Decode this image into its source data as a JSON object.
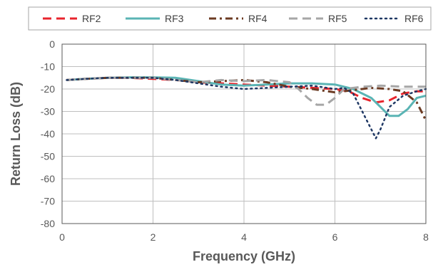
{
  "chart_data": {
    "type": "line",
    "title": "",
    "xlabel": "Frequency (GHz)",
    "ylabel": "Return Loss (dB)",
    "xlim": [
      0,
      8
    ],
    "ylim": [
      -80,
      0
    ],
    "xticks": [
      0,
      2,
      4,
      6,
      8
    ],
    "yticks": [
      0,
      -10,
      -20,
      -30,
      -40,
      -50,
      -60,
      -70,
      -80
    ],
    "grid": true,
    "legend_position": "top",
    "series": [
      {
        "name": "RF2",
        "color": "#e8242c",
        "style": "dash",
        "x": [
          0.1,
          0.5,
          1.0,
          1.5,
          2.0,
          2.5,
          3.0,
          3.5,
          4.0,
          4.5,
          5.0,
          5.5,
          6.0,
          6.3,
          6.6,
          6.9,
          7.2,
          7.5,
          7.8,
          8.0
        ],
        "y": [
          -16,
          -15.5,
          -15,
          -15,
          -15.5,
          -16,
          -17,
          -17.5,
          -18,
          -18.5,
          -19,
          -19.5,
          -20,
          -21,
          -24,
          -26,
          -25,
          -22,
          -21,
          -21
        ]
      },
      {
        "name": "RF3",
        "color": "#5ab4b4",
        "style": "solid",
        "x": [
          0.1,
          0.5,
          1.0,
          1.5,
          2.0,
          2.5,
          3.0,
          3.5,
          4.0,
          4.5,
          5.0,
          5.5,
          6.0,
          6.4,
          6.8,
          7.0,
          7.2,
          7.4,
          7.6,
          7.8,
          8.0
        ],
        "y": [
          -16,
          -15.5,
          -15,
          -14.8,
          -14.8,
          -15,
          -16.5,
          -18,
          -18.5,
          -18,
          -17.5,
          -17.5,
          -18,
          -20,
          -24,
          -28,
          -32,
          -32,
          -29,
          -24,
          -23
        ]
      },
      {
        "name": "RF4",
        "color": "#6b3a22",
        "style": "dashdot",
        "x": [
          0.1,
          0.5,
          1.0,
          1.5,
          2.0,
          2.5,
          3.0,
          3.5,
          4.0,
          4.5,
          5.0,
          5.5,
          6.0,
          6.4,
          6.8,
          7.2,
          7.5,
          7.8,
          8.0
        ],
        "y": [
          -16,
          -15.5,
          -15,
          -15,
          -15,
          -16,
          -17,
          -16.5,
          -16,
          -17,
          -19,
          -20,
          -21.5,
          -20.5,
          -19.5,
          -20,
          -21,
          -26,
          -34
        ]
      },
      {
        "name": "RF5",
        "color": "#a6a6a6",
        "style": "dash",
        "x": [
          0.1,
          0.5,
          1.0,
          1.5,
          2.0,
          2.5,
          3.0,
          3.5,
          4.0,
          4.5,
          5.0,
          5.2,
          5.4,
          5.6,
          5.8,
          6.0,
          6.2,
          6.6,
          7.0,
          7.5,
          8.0
        ],
        "y": [
          -16,
          -15.5,
          -15,
          -15,
          -15,
          -16,
          -17,
          -16,
          -16.5,
          -16,
          -17,
          -20,
          -24,
          -27,
          -27,
          -24,
          -20,
          -19,
          -18.5,
          -19,
          -19
        ]
      },
      {
        "name": "RF6",
        "color": "#1f3864",
        "style": "dot",
        "x": [
          0.1,
          0.5,
          1.0,
          1.5,
          2.0,
          2.5,
          3.0,
          3.5,
          4.0,
          4.5,
          5.0,
          5.5,
          6.0,
          6.2,
          6.4,
          6.6,
          6.8,
          6.9,
          7.0,
          7.2,
          7.5,
          7.8,
          8.0
        ],
        "y": [
          -16,
          -15.5,
          -15,
          -15,
          -15,
          -16,
          -17.5,
          -19,
          -20,
          -19.5,
          -19,
          -18.5,
          -20,
          -19.5,
          -22,
          -30,
          -38,
          -42,
          -38,
          -28,
          -23,
          -21,
          -20
        ]
      }
    ]
  }
}
